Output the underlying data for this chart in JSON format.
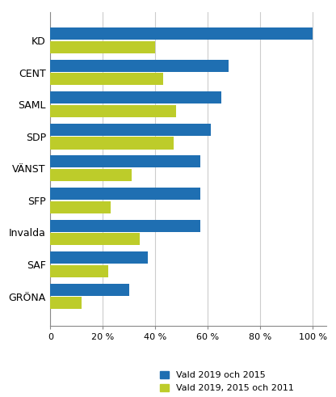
{
  "categories": [
    "KD",
    "CENT",
    "SAML",
    "SDP",
    "VÄNST",
    "SFP",
    "Invalda",
    "SAF",
    "GRÖNA"
  ],
  "blue_values": [
    100,
    68,
    65,
    61,
    57,
    57,
    57,
    37,
    30
  ],
  "green_values": [
    40,
    43,
    48,
    47,
    31,
    23,
    34,
    22,
    12
  ],
  "blue_color": "#1F6FB2",
  "green_color": "#BDCC2A",
  "blue_label": "Vald 2019 och 2015",
  "green_label": "Vald 2019, 2015 och 2011",
  "xlim": [
    0,
    105
  ],
  "xticks": [
    0,
    20,
    40,
    60,
    80,
    100
  ],
  "xticklabels": [
    "0",
    "20 %",
    "40 %",
    "60 %",
    "80 %",
    "100 %"
  ],
  "background_color": "#ffffff",
  "grid_color": "#cccccc"
}
